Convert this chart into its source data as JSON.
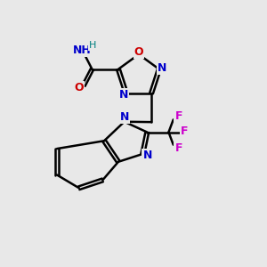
{
  "bg_color": "#e8e8e8",
  "atom_colors": {
    "C": "#000000",
    "N": "#0000cc",
    "O": "#cc0000",
    "F": "#cc00cc",
    "H": "#008080"
  },
  "bond_color": "#000000",
  "bond_width": 1.8
}
